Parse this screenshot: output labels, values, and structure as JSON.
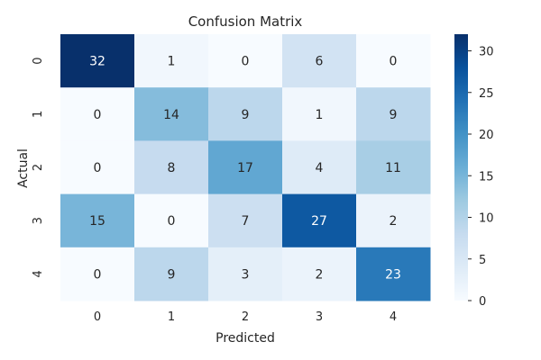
{
  "chart_data": {
    "type": "heatmap",
    "title": "Confusion Matrix",
    "xlabel": "Predicted",
    "ylabel": "Actual",
    "x_categories": [
      "0",
      "1",
      "2",
      "3",
      "4"
    ],
    "y_categories": [
      "0",
      "1",
      "2",
      "3",
      "4"
    ],
    "values": [
      [
        32,
        1,
        0,
        6,
        0
      ],
      [
        0,
        14,
        9,
        1,
        9
      ],
      [
        0,
        8,
        17,
        4,
        11
      ],
      [
        15,
        0,
        7,
        27,
        2
      ],
      [
        0,
        9,
        3,
        2,
        23
      ]
    ],
    "colorscale": "Blues",
    "color_range": [
      0,
      32
    ],
    "colorbar_ticks": [
      "0",
      "5",
      "10",
      "15",
      "20",
      "25",
      "30"
    ],
    "annotations": true,
    "grid": false
  }
}
